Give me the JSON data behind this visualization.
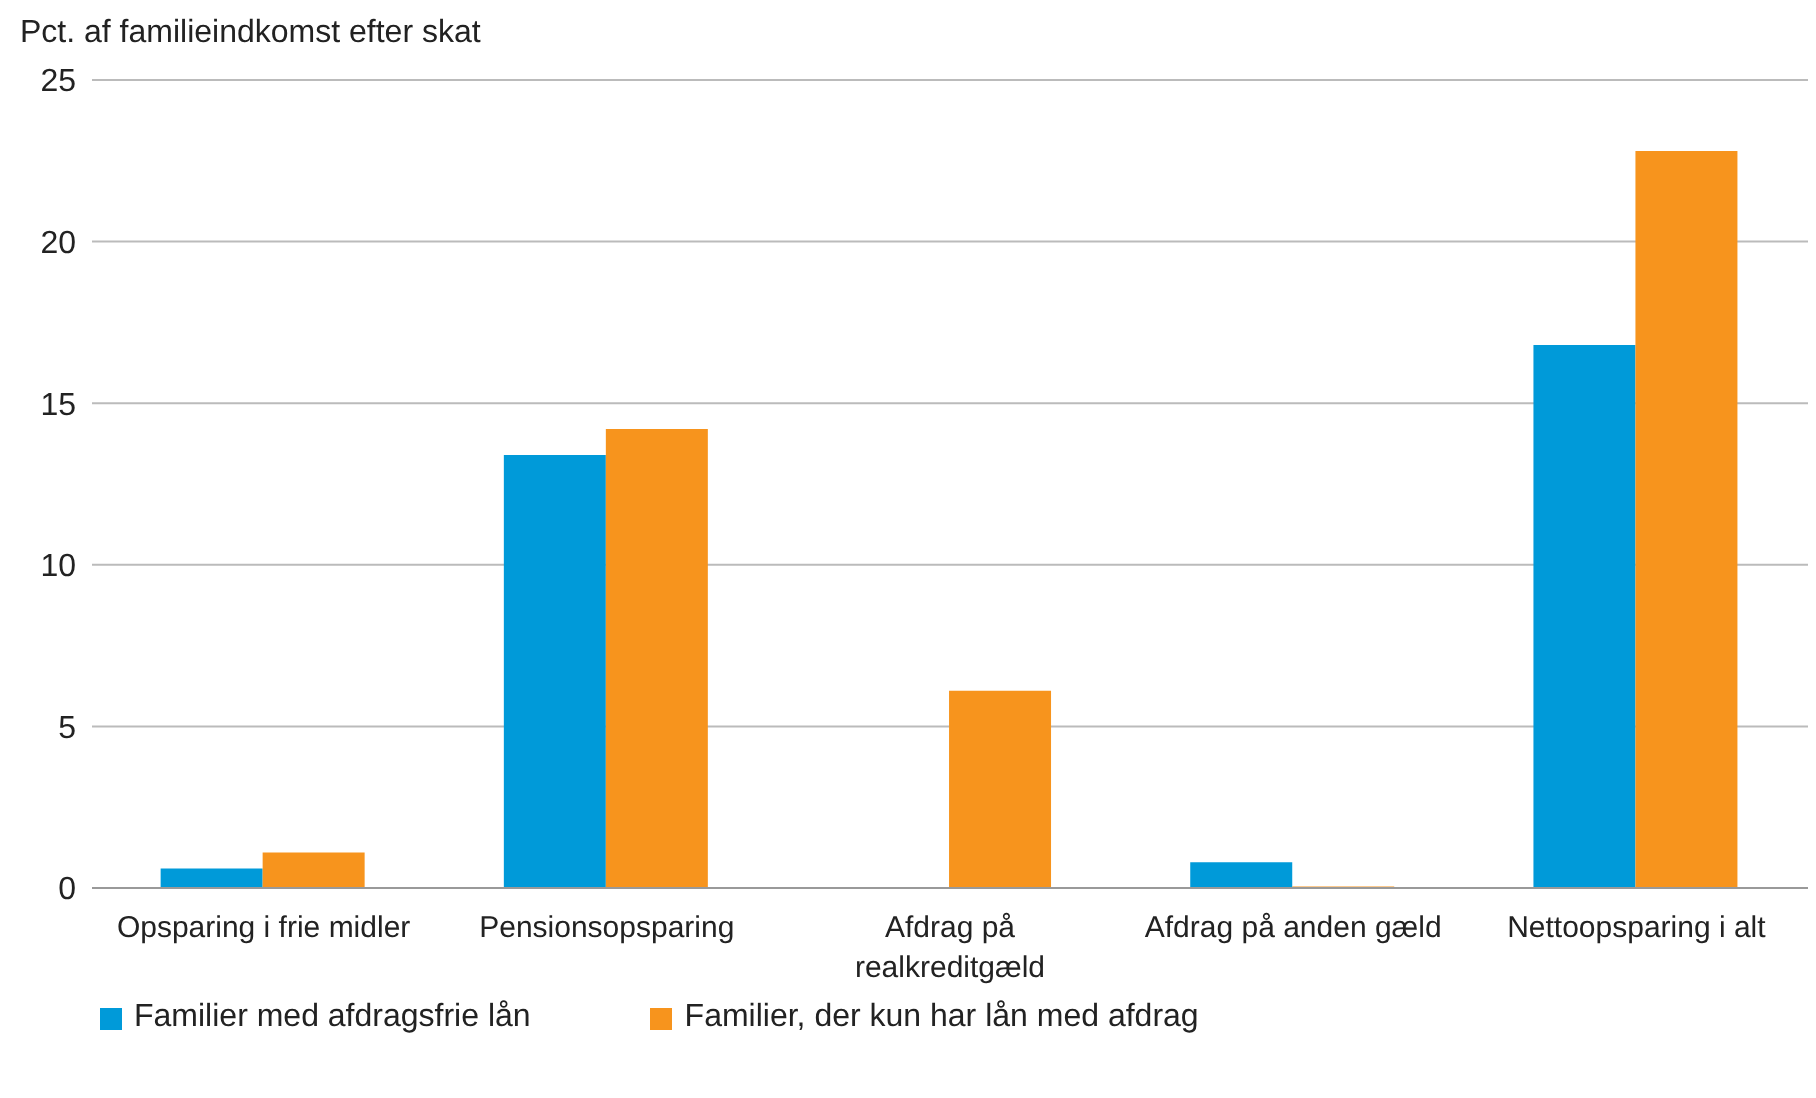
{
  "chart_data": {
    "type": "bar",
    "ylabel": "Pct. af familieindkomst efter skat",
    "categories": [
      "Opsparing i frie midler",
      "Pensionsopsparing",
      "Afdrag på realkreditgæld",
      "Afdrag på anden gæld",
      "Nettoopsparing i alt"
    ],
    "series": [
      {
        "name": "Familier med afdragsfrie lån",
        "color": "#009ad9",
        "values": [
          0.6,
          13.4,
          0,
          0.8,
          16.8
        ]
      },
      {
        "name": "Familier, der kun har lån med afdrag",
        "color": "#f7941d",
        "values": [
          1.1,
          14.2,
          6.1,
          0.05,
          22.8
        ]
      }
    ],
    "ylim": [
      0,
      25
    ],
    "yticks": [
      0,
      5,
      10,
      15,
      20,
      25
    ],
    "grid": "y",
    "legend": "bottom"
  }
}
